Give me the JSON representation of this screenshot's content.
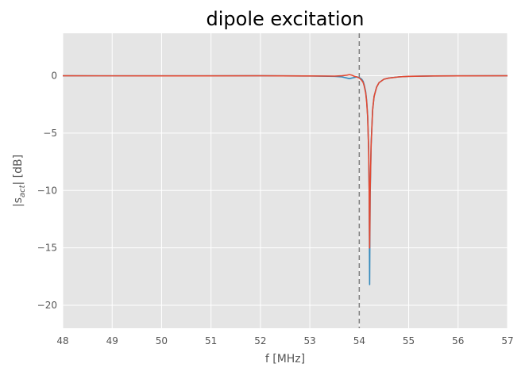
{
  "chart_data": {
    "type": "line",
    "title": "dipole excitation",
    "xlabel": "f [MHz]",
    "ylabel": "|s_act| [dB]",
    "ylabel_main": "|s",
    "ylabel_sub": "act",
    "ylabel_tail": "| [dB]",
    "xlim": [
      48,
      57
    ],
    "ylim": [
      -22,
      3.7
    ],
    "xticks": [
      48,
      49,
      50,
      51,
      52,
      53,
      54,
      55,
      56,
      57
    ],
    "yticks": [
      0,
      -5,
      -10,
      -15,
      -20
    ],
    "ytick_labels": [
      "0",
      "−5",
      "−10",
      "−15",
      "−20"
    ],
    "grid": true,
    "vline": {
      "x": 54.0,
      "style": "dashed",
      "color": "#808080"
    },
    "series": [
      {
        "color": "#348ABD",
        "x": [
          48,
          50,
          52,
          53,
          53.5,
          53.65,
          53.75,
          53.8,
          53.85,
          53.9,
          53.95,
          54.0,
          54.05,
          54.08,
          54.1,
          54.13,
          54.15,
          54.17,
          54.19,
          54.2,
          54.205,
          54.21,
          54.215,
          54.22,
          54.24,
          54.27,
          54.3,
          54.35,
          54.4,
          54.5,
          54.6,
          54.8,
          55,
          55.5,
          56,
          57
        ],
        "y": [
          0,
          -0.01,
          0,
          -0.02,
          -0.05,
          -0.1,
          -0.2,
          -0.25,
          -0.2,
          -0.15,
          -0.1,
          -0.15,
          -0.3,
          -0.5,
          -0.8,
          -1.4,
          -2.2,
          -3.5,
          -6.5,
          -10,
          -14,
          -18.2,
          -14,
          -10.5,
          -6,
          -3,
          -1.8,
          -1,
          -0.6,
          -0.3,
          -0.2,
          -0.1,
          -0.05,
          -0.02,
          -0.01,
          0
        ]
      },
      {
        "color": "#E24A33",
        "x": [
          48,
          50,
          52,
          53,
          53.5,
          53.65,
          53.75,
          53.8,
          53.85,
          53.9,
          53.95,
          54.0,
          54.05,
          54.08,
          54.1,
          54.13,
          54.15,
          54.17,
          54.19,
          54.2,
          54.205,
          54.21,
          54.215,
          54.22,
          54.24,
          54.27,
          54.3,
          54.35,
          54.4,
          54.5,
          54.6,
          54.8,
          55,
          55.5,
          56,
          57
        ],
        "y": [
          0,
          -0.01,
          0,
          -0.02,
          -0.03,
          0,
          0.05,
          0.1,
          0.05,
          -0.05,
          -0.1,
          -0.2,
          -0.4,
          -0.6,
          -0.9,
          -1.5,
          -2.3,
          -3.6,
          -6.5,
          -10,
          -13,
          -15.0,
          -13,
          -10,
          -6,
          -3,
          -1.8,
          -1,
          -0.6,
          -0.3,
          -0.2,
          -0.1,
          -0.05,
          -0.02,
          -0.01,
          0
        ]
      }
    ]
  }
}
